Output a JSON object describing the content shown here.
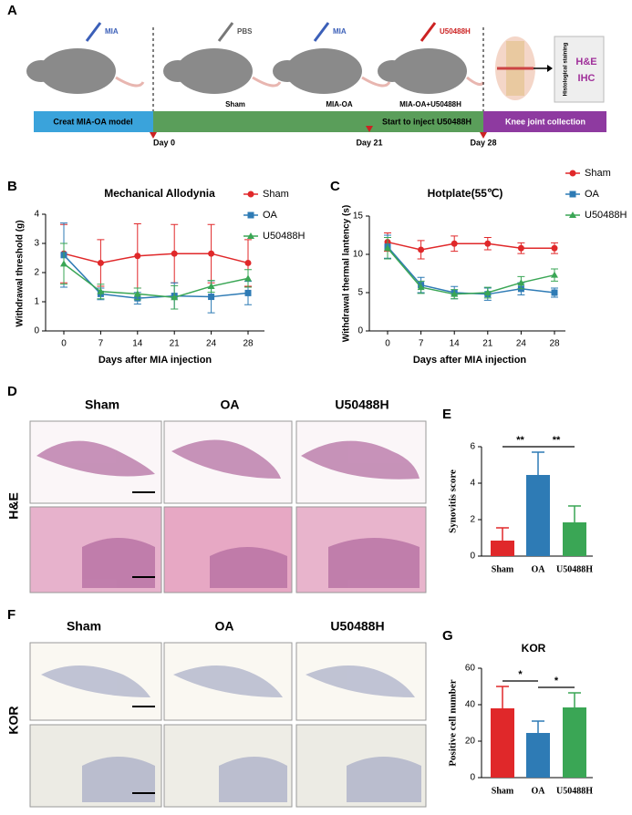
{
  "panel_a": {
    "letter": "A",
    "drugs": [
      "MIA",
      "PBS",
      "MIA",
      "U50488H"
    ],
    "groups": [
      "Sham",
      "MIA-OA",
      "MIA-OA+U50488H"
    ],
    "stain_box": {
      "caption": "Histological staining",
      "methods": [
        "H&E",
        "IHC"
      ]
    },
    "phases": [
      "Creat MIA-OA model",
      "Start to inject U50488H",
      "Knee joint collection"
    ],
    "days": [
      "Day 0",
      "Day 21",
      "Day 28"
    ]
  },
  "chart_data": [
    {
      "panel": "B",
      "type": "line",
      "title": "Mechanical Allodynia",
      "x_label": "Days after MIA injection",
      "y_label": "Withdrawal threshold (g)",
      "categories": [
        "0",
        "7",
        "14",
        "21",
        "24",
        "28"
      ],
      "ylim": [
        0,
        4
      ],
      "yticks": [
        0,
        1,
        2,
        3,
        4
      ],
      "legend": "right",
      "series": [
        {
          "name": "Sham",
          "color": "#e0282a",
          "marker": "circle",
          "values": [
            2.65,
            2.33,
            2.57,
            2.65,
            2.65,
            2.33
          ],
          "errors": [
            1.0,
            0.8,
            1.1,
            1.0,
            1.0,
            0.8
          ]
        },
        {
          "name": "OA",
          "color": "#2e7bb5",
          "marker": "square",
          "values": [
            2.6,
            1.27,
            1.12,
            1.2,
            1.17,
            1.3
          ],
          "errors": [
            1.1,
            0.2,
            0.2,
            0.45,
            0.55,
            0.4
          ]
        },
        {
          "name": "U50488H",
          "color": "#3aa655",
          "marker": "triangle",
          "values": [
            2.3,
            1.35,
            1.27,
            1.15,
            1.53,
            1.8
          ],
          "errors": [
            0.7,
            0.25,
            0.2,
            0.4,
            0.2,
            0.3
          ]
        }
      ]
    },
    {
      "panel": "C",
      "type": "line",
      "title": "Hotplate(55℃)",
      "x_label": "Days after MIA injection",
      "y_label": "Withdrawal thermal lantency (s)",
      "categories": [
        "0",
        "7",
        "14",
        "21",
        "24",
        "28"
      ],
      "ylim": [
        0,
        15
      ],
      "yticks": [
        0,
        5,
        10,
        15
      ],
      "legend": "top-right",
      "series": [
        {
          "name": "Sham",
          "color": "#e0282a",
          "marker": "circle",
          "values": [
            11.6,
            10.6,
            11.4,
            11.4,
            10.8,
            10.8
          ],
          "errors": [
            1.2,
            1.2,
            1.0,
            0.8,
            0.7,
            0.7
          ]
        },
        {
          "name": "OA",
          "color": "#2e7bb5",
          "marker": "square",
          "values": [
            11.0,
            6.0,
            5.0,
            4.8,
            5.5,
            5.0
          ],
          "errors": [
            1.5,
            1.0,
            0.8,
            0.8,
            0.8,
            0.6
          ]
        },
        {
          "name": "U50488H",
          "color": "#3aa655",
          "marker": "triangle",
          "values": [
            10.8,
            5.7,
            4.8,
            5.0,
            6.3,
            7.3
          ],
          "errors": [
            1.4,
            0.8,
            0.6,
            0.7,
            0.8,
            0.8
          ]
        }
      ]
    },
    {
      "panel": "E",
      "type": "bar",
      "y_label": "Synovitis score",
      "categories": [
        "Sham",
        "OA",
        "U50488H"
      ],
      "colors": [
        "#e0282a",
        "#2e7bb5",
        "#3aa655"
      ],
      "values": [
        0.85,
        4.45,
        1.85
      ],
      "errors": [
        0.7,
        1.25,
        0.9
      ],
      "ylim": [
        0,
        6
      ],
      "yticks": [
        0,
        2,
        4,
        6
      ],
      "significance": [
        "**",
        "**"
      ]
    },
    {
      "panel": "G",
      "type": "bar",
      "title": "KOR",
      "y_label": "Positive cell number",
      "categories": [
        "Sham",
        "OA",
        "U50488H"
      ],
      "colors": [
        "#e0282a",
        "#2e7bb5",
        "#3aa655"
      ],
      "values": [
        38,
        24.5,
        38.5
      ],
      "errors": [
        12,
        6.5,
        8
      ],
      "ylim": [
        0,
        60
      ],
      "yticks": [
        0,
        20,
        40,
        60
      ],
      "significance": [
        "*",
        "*"
      ]
    }
  ],
  "panel_d": {
    "letter": "D",
    "columns": [
      "Sham",
      "OA",
      "U50488H"
    ],
    "row_label": "H&E"
  },
  "panel_f": {
    "letter": "F",
    "columns": [
      "Sham",
      "OA",
      "U50488H"
    ],
    "row_label": "KOR"
  }
}
